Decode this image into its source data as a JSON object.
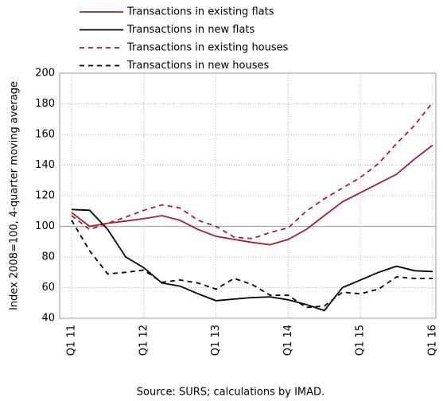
{
  "chart_data": {
    "type": "line",
    "y_label": "Index 2008=100, 4-quarter moving average",
    "source": "Source: SURS; calculations by IMAD.",
    "categories": [
      "Q1 11",
      null,
      null,
      null,
      "Q1 12",
      null,
      null,
      null,
      "Q1 13",
      null,
      null,
      null,
      "Q1 14",
      null,
      null,
      null,
      "Q1 15",
      null,
      null,
      null,
      "Q1 16"
    ],
    "series": [
      {
        "name": "Transactions in existing flats",
        "color": "#a51e36",
        "dashed": false,
        "values": [
          109,
          100,
          102,
          103.5,
          105,
          107,
          104,
          98,
          93.5,
          91.5,
          89.5,
          88,
          91.5,
          98,
          107,
          116,
          122,
          128,
          134,
          144,
          153
        ]
      },
      {
        "name": "Transactions in new flats",
        "color": "#000000",
        "dashed": false,
        "values": [
          111,
          110.5,
          98,
          80,
          73,
          63,
          61,
          56,
          51.5,
          52.5,
          53.5,
          54,
          52,
          49,
          45,
          60,
          65,
          70,
          74,
          71,
          70.5
        ]
      },
      {
        "name": "Transactions in existing houses",
        "color": "#a51e36",
        "dashed": true,
        "values": [
          107,
          98,
          102,
          106,
          110.5,
          114,
          112,
          104,
          100,
          93,
          92,
          96,
          99,
          110,
          118,
          125,
          132,
          141,
          154,
          166,
          181
        ]
      },
      {
        "name": "Transactions in new houses",
        "color": "#000000",
        "dashed": true,
        "values": [
          104,
          84,
          69,
          70,
          71.5,
          63.5,
          65,
          63,
          59,
          66,
          62,
          55,
          55,
          47,
          48,
          57,
          56,
          59,
          67,
          66,
          66
        ]
      }
    ],
    "ylim": [
      40,
      200
    ],
    "yticks": [
      40,
      60,
      80,
      100,
      120,
      140,
      160,
      180,
      200
    ],
    "reference_y": 100,
    "grid": true,
    "legend": "top"
  }
}
